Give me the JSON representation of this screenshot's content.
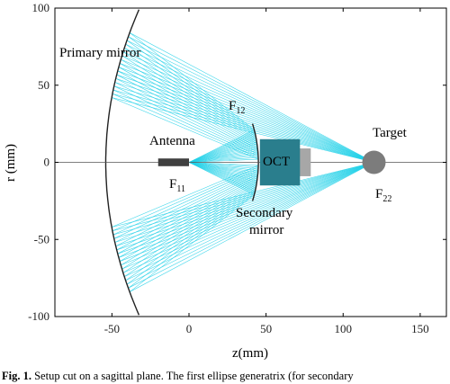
{
  "chart_data": {
    "type": "scatter",
    "xlabel": "z(mm)",
    "ylabel": "r (mm)",
    "xlim": [
      -87,
      167
    ],
    "ylim": [
      -100,
      100
    ],
    "x_ticks": [
      -50,
      0,
      50,
      100,
      150
    ],
    "y_ticks": [
      100,
      50,
      0,
      -50,
      -100
    ],
    "grid": false,
    "elements": {
      "primary_mirror": {
        "label": "Primary mirror"
      },
      "secondary_mirror": {
        "label": "Secondary mirror"
      },
      "antenna": {
        "label": "Antenna",
        "z": [
          -20,
          0
        ],
        "r": 0
      },
      "oct": {
        "label": "OCT",
        "z": [
          46,
          72
        ],
        "r": [
          -15,
          15
        ]
      },
      "target": {
        "label": "Target",
        "z": 120,
        "r": 0
      },
      "focus_f11": {
        "label": "F",
        "sub": "11",
        "z": 0,
        "r": 0
      },
      "focus_f12": {
        "label": "F",
        "sub": "12",
        "z": 40,
        "r": 27
      },
      "focus_f22": {
        "label": "F",
        "sub": "22",
        "z": 120,
        "r": 0
      }
    },
    "colors": {
      "rays": "#1ed0e8",
      "oct": "#2a7e8d",
      "oct_back": "#a7a7a7",
      "target": "#7c7c7c",
      "antenna": "#404040"
    }
  },
  "caption": {
    "bold": "Fig. 1.",
    "text": " Setup cut on a sagittal plane.  The first ellipse generatrix (for secondary"
  }
}
